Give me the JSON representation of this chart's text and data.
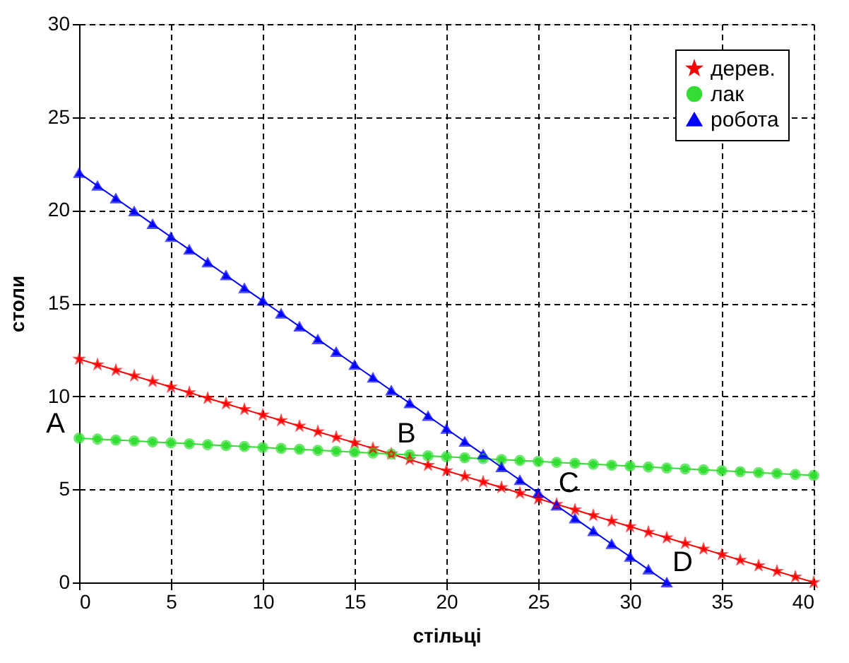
{
  "chart_data": {
    "type": "line",
    "xlabel": "стільці",
    "ylabel": "столи",
    "x": [
      0,
      1,
      2,
      3,
      4,
      5,
      6,
      7,
      8,
      9,
      10,
      11,
      12,
      13,
      14,
      15,
      16,
      17,
      18,
      19,
      20,
      21,
      22,
      23,
      24,
      25,
      26,
      27,
      28,
      29,
      30,
      31,
      32,
      33,
      34,
      35,
      36,
      37,
      38,
      39,
      40
    ],
    "series": [
      {
        "name": "дерев.",
        "color": "#ff0000",
        "marker": "star",
        "values": [
          12,
          11.7,
          11.4,
          11.1,
          10.8,
          10.5,
          10.2,
          9.9,
          9.6,
          9.3,
          9,
          8.7,
          8.4,
          8.1,
          7.8,
          7.5,
          7.2,
          6.9,
          6.6,
          6.3,
          6,
          5.7,
          5.4,
          5.1,
          4.8,
          4.5,
          4.2,
          3.9,
          3.6,
          3.3,
          3,
          2.7,
          2.4,
          2.1,
          1.8,
          1.5,
          1.2,
          0.9,
          0.6,
          0.3,
          0
        ]
      },
      {
        "name": "лак",
        "color": "#33dd33",
        "marker": "circle",
        "values": [
          7.75,
          7.7,
          7.65,
          7.6,
          7.55,
          7.5,
          7.45,
          7.4,
          7.35,
          7.3,
          7.25,
          7.2,
          7.15,
          7.1,
          7.05,
          7,
          6.95,
          6.9,
          6.85,
          6.8,
          6.75,
          6.7,
          6.65,
          6.6,
          6.55,
          6.5,
          6.45,
          6.4,
          6.35,
          6.3,
          6.25,
          6.2,
          6.15,
          6.1,
          6.05,
          6,
          5.95,
          5.9,
          5.85,
          5.8,
          5.75
        ]
      },
      {
        "name": "робота",
        "color": "#0000ff",
        "marker": "triangle",
        "x": [
          0,
          1,
          2,
          3,
          4,
          5,
          6,
          7,
          8,
          9,
          10,
          11,
          12,
          13,
          14,
          15,
          16,
          17,
          18,
          19,
          20,
          21,
          22,
          23,
          24,
          25,
          26,
          27,
          28,
          29,
          30,
          31,
          32
        ],
        "values": [
          22,
          21.31,
          20.63,
          19.94,
          19.25,
          18.56,
          17.88,
          17.19,
          16.5,
          15.81,
          15.13,
          14.44,
          13.75,
          13.06,
          12.38,
          11.69,
          11,
          10.31,
          9.63,
          8.94,
          8.25,
          7.56,
          6.88,
          6.19,
          5.5,
          4.81,
          4.13,
          3.44,
          2.75,
          2.06,
          1.38,
          0.69,
          0
        ]
      }
    ],
    "xlim": [
      0,
      40
    ],
    "xticks": [
      0,
      5,
      10,
      15,
      20,
      25,
      30,
      35,
      40
    ],
    "ylim": [
      0,
      30
    ],
    "yticks": [
      0,
      5,
      10,
      15,
      20,
      25,
      30
    ],
    "grid": true,
    "line_style": "solid",
    "legend": "top right",
    "annotations": [
      {
        "text": "A",
        "x": 0,
        "y": 7.75
      },
      {
        "text": "B",
        "x": 17,
        "y": 6.9
      },
      {
        "text": "C",
        "x": 25.8,
        "y": 4.26
      },
      {
        "text": "D",
        "x": 32,
        "y": 0
      }
    ]
  }
}
